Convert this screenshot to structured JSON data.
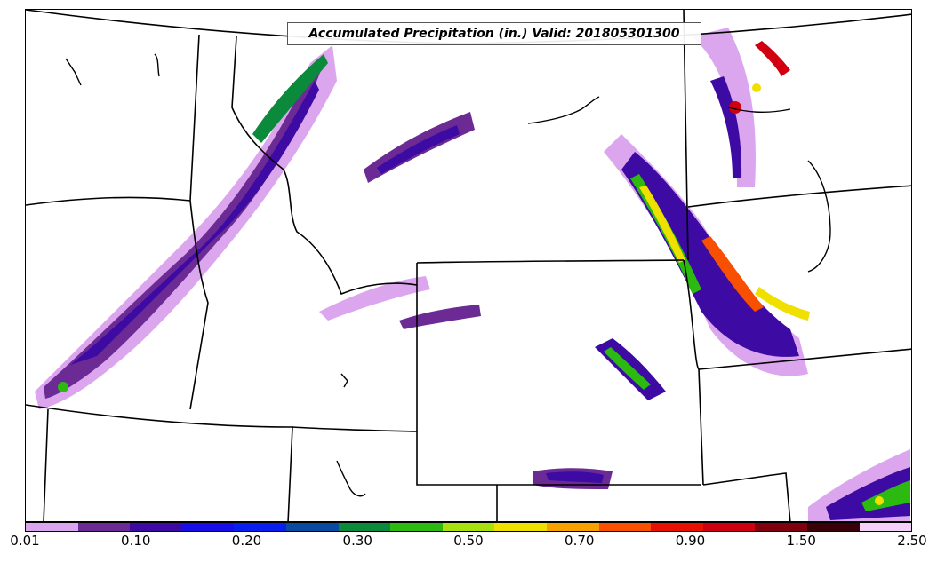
{
  "map": {
    "title": "Accumulated Precipitation (in.) Valid: 201805301300",
    "variable": "accumulated-precipitation",
    "units": "in."
  },
  "colorbar": {
    "segment_colors": [
      "#dba6ee",
      "#6b2a94",
      "#3d0aa3",
      "#1a0ee6",
      "#0a1ef0",
      "#0a4aa0",
      "#0a8a3a",
      "#2cba10",
      "#a8e010",
      "#f0e000",
      "#f8a000",
      "#f85000",
      "#e81000",
      "#d00010",
      "#800010",
      "#3a0008"
    ],
    "top_color": "#f4d0f8",
    "tick_labels": [
      "0.01",
      "0.10",
      "0.20",
      "0.30",
      "0.50",
      "0.70",
      "0.90",
      "1.50",
      "2.50"
    ]
  }
}
